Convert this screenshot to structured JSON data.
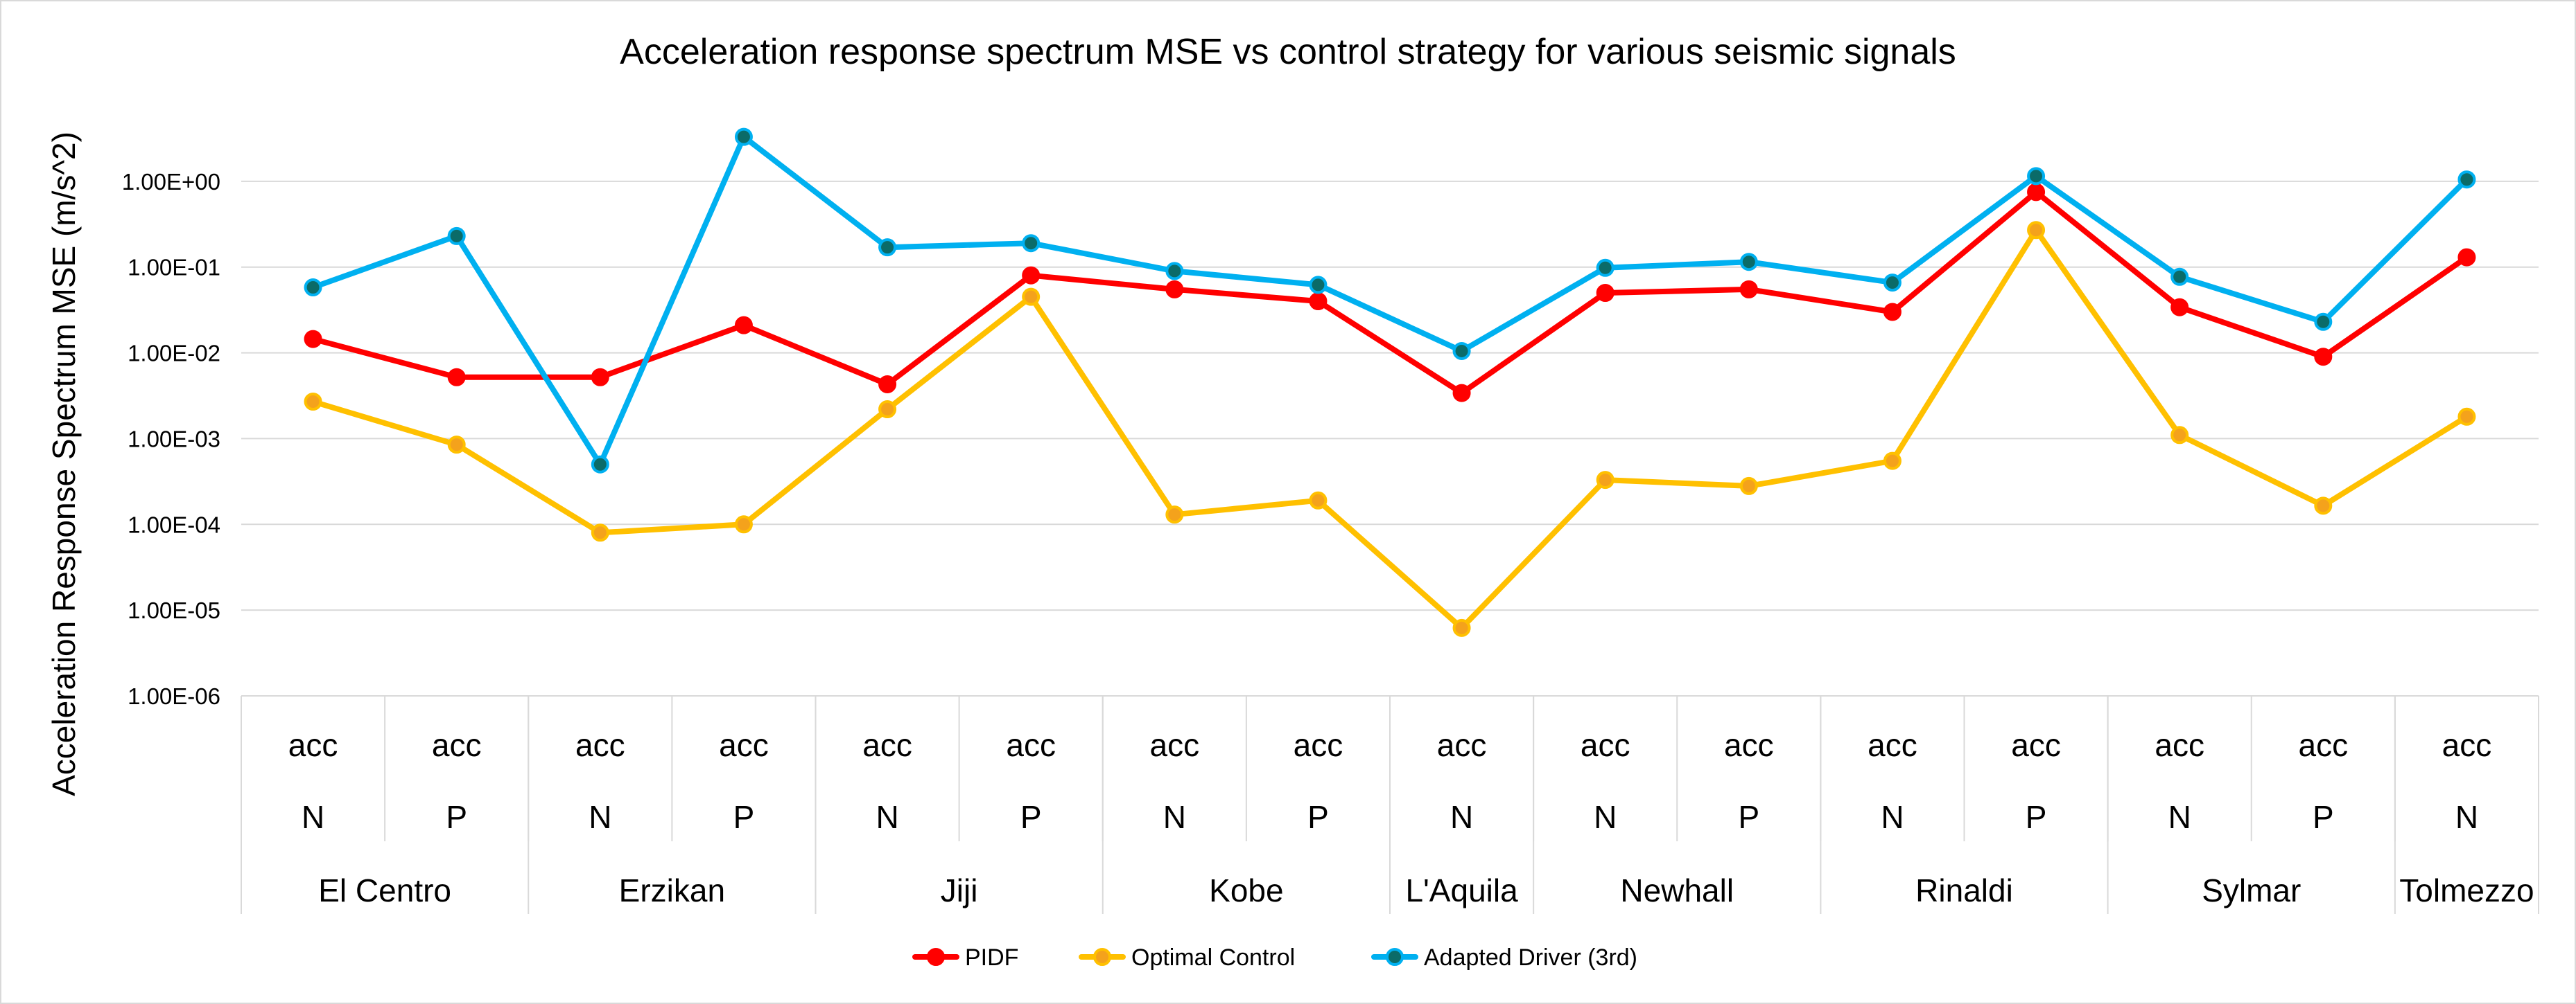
{
  "chart_data": {
    "type": "line",
    "title": "Acceleration response spectrum MSE vs control strategy for various seismic signals",
    "ylabel": "Acceleration Response Spectrum MSE (m/s^2)",
    "yscale": "log",
    "ylim": [
      1e-06,
      10
    ],
    "yticks": [
      1e-06,
      1e-05,
      0.0001,
      0.001,
      0.01,
      0.1,
      1
    ],
    "ytick_labels": [
      "1.00E-06",
      "1.00E-05",
      "1.00E-04",
      "1.00E-03",
      "1.00E-02",
      "1.00E-01",
      "1.00E+00"
    ],
    "grid": true,
    "legend_position": "bottom",
    "x_levels": {
      "level1": [
        "acc",
        "acc",
        "acc",
        "acc",
        "acc",
        "acc",
        "acc",
        "acc",
        "acc",
        "acc",
        "acc",
        "acc",
        "acc",
        "acc",
        "acc",
        "acc"
      ],
      "level2": [
        "N",
        "P",
        "N",
        "P",
        "N",
        "P",
        "N",
        "P",
        "N",
        "N",
        "P",
        "N",
        "P",
        "N",
        "P",
        "N"
      ],
      "level3": [
        {
          "label": "El Centro",
          "span": 2
        },
        {
          "label": "Erzikan",
          "span": 2
        },
        {
          "label": "Jiji",
          "span": 2
        },
        {
          "label": "Kobe",
          "span": 2
        },
        {
          "label": "L'Aquila",
          "span": 1
        },
        {
          "label": "Newhall",
          "span": 2
        },
        {
          "label": "Rinaldi",
          "span": 2
        },
        {
          "label": "Sylmar",
          "span": 2
        },
        {
          "label": "Tolmezzo",
          "span": 1
        }
      ]
    },
    "series": [
      {
        "name": "PIDF",
        "color": "#ff0000",
        "marker_fill": "#ff0000",
        "values": [
          0.0145,
          0.0052,
          0.0052,
          0.021,
          0.0043,
          0.08,
          0.055,
          0.04,
          0.0034,
          0.05,
          0.055,
          0.03,
          0.75,
          0.034,
          0.009,
          0.13
        ]
      },
      {
        "name": "Optimal Control",
        "color": "#ffc000",
        "marker_fill": "#f4a21c",
        "values": [
          0.0027,
          0.00085,
          8e-05,
          0.0001,
          0.0022,
          0.045,
          0.00013,
          0.00019,
          6.2e-06,
          0.00033,
          0.00028,
          0.00055,
          0.27,
          0.0011,
          0.000165,
          0.0018
        ]
      },
      {
        "name": "Adapted Driver (3rd)",
        "color": "#00b0f0",
        "marker_fill": "#0b6b68",
        "values": [
          0.058,
          0.23,
          0.0005,
          3.3,
          0.17,
          0.19,
          0.09,
          0.062,
          0.0105,
          0.098,
          0.115,
          0.066,
          1.15,
          0.077,
          0.023,
          1.05
        ]
      }
    ]
  }
}
